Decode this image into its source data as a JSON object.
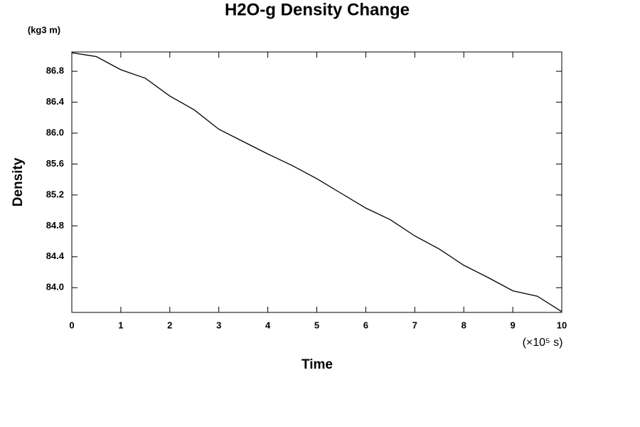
{
  "chart_data": {
    "type": "line",
    "title": "H2O-g Density Change",
    "y_unit": "(kg3 m)",
    "y_label": "Density",
    "x_label": "Time",
    "x_unit": "(×10⁵ s)",
    "x": [
      0,
      0.5,
      1,
      1.5,
      2,
      2.5,
      3,
      3.5,
      4,
      4.5,
      5,
      5.5,
      6,
      6.5,
      7,
      7.5,
      8,
      8.5,
      9,
      9.5,
      10
    ],
    "series": [
      {
        "color": "#000000",
        "values": [
          87.04,
          86.99,
          86.82,
          86.71,
          86.48,
          86.3,
          86.05,
          85.89,
          85.73,
          85.58,
          85.41,
          85.22,
          85.03,
          84.88,
          84.67,
          84.5,
          84.29,
          84.13,
          83.96,
          83.89,
          83.69
        ]
      }
    ],
    "xlim": [
      0,
      10
    ],
    "ylim": [
      83.68,
      87.05
    ],
    "xticks": [
      0,
      1,
      2,
      3,
      4,
      5,
      6,
      7,
      8,
      9,
      10
    ],
    "yticks": [
      {
        "value": 84,
        "label": "84.0"
      },
      {
        "value": 84.4,
        "label": "84.4"
      },
      {
        "value": 84.8,
        "label": "84.8"
      },
      {
        "value": 85.2,
        "label": "85.2"
      },
      {
        "value": 85.6,
        "label": "85.6"
      },
      {
        "value": 86,
        "label": "86.0"
      },
      {
        "value": 86.4,
        "label": "86.4"
      },
      {
        "value": 86.8,
        "label": "86.8"
      }
    ]
  }
}
